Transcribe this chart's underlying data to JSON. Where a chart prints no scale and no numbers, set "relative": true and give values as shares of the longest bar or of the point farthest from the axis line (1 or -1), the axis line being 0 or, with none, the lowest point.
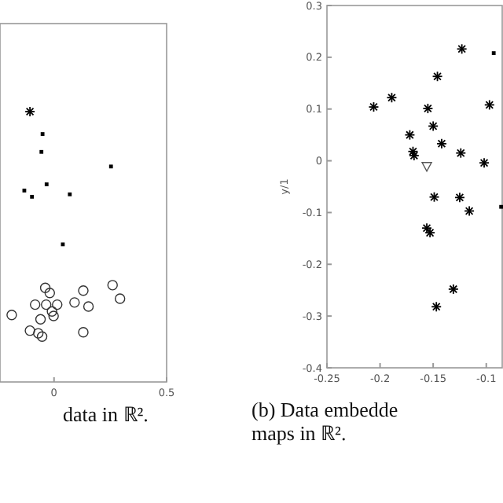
{
  "chart_data": [
    {
      "type": "scatter",
      "title": "data in ℝ².",
      "xlim": [
        -0.24,
        0.5
      ],
      "xticks": [
        0,
        0.5
      ],
      "relative": true,
      "tick_labels": "x",
      "grid": false,
      "series": [
        {
          "color": "#000000",
          "marker": "cross",
          "x": [
            -0.107
          ],
          "values": [
            1.0
          ]
        },
        {
          "color": "#000000",
          "marker": "square",
          "x": [
            -0.051,
            -0.056,
            0.253,
            -0.033,
            -0.132,
            -0.098,
            0.07,
            0.039
          ],
          "values": [
            0.917,
            0.851,
            0.797,
            0.731,
            0.708,
            0.685,
            0.694,
            0.509
          ]
        },
        {
          "color": "#333333",
          "marker": "circle",
          "x": [
            -0.039,
            -0.019,
            0.13,
            0.26,
            0.293,
            -0.084,
            -0.035,
            0.014,
            0.091,
            0.153,
            -0.188,
            -0.06,
            -0.002,
            -0.009,
            -0.107,
            -0.07,
            -0.053,
            0.13
          ],
          "values": [
            0.348,
            0.329,
            0.338,
            0.358,
            0.308,
            0.286,
            0.286,
            0.286,
            0.294,
            0.279,
            0.248,
            0.232,
            0.244,
            0.261,
            0.19,
            0.18,
            0.168,
            0.184
          ]
        }
      ]
    },
    {
      "type": "scatter",
      "title": "(b) Data embedde\nmaps in ℝ².",
      "ylabel": "y/1",
      "xlim": [
        -0.25,
        -0.085
      ],
      "ylim": [
        -0.4,
        0.3
      ],
      "xticks": [
        -0.25,
        -0.2,
        -0.15,
        -0.1
      ],
      "yticks": [
        -0.4,
        -0.3,
        -0.2,
        -0.1,
        0,
        0.1,
        0.2,
        0.3
      ],
      "grid": false,
      "series": [
        {
          "color": "#000000",
          "marker": "cross",
          "x": [
            -0.123,
            -0.146,
            -0.189,
            -0.206,
            -0.155,
            -0.097,
            -0.15,
            -0.142,
            -0.172,
            -0.169,
            -0.168,
            -0.124,
            -0.102,
            -0.149,
            -0.125,
            -0.116,
            -0.156,
            -0.153,
            -0.131,
            -0.147
          ],
          "values": [
            0.216,
            0.163,
            0.122,
            0.104,
            0.101,
            0.108,
            0.067,
            0.033,
            0.05,
            0.018,
            0.01,
            0.015,
            -0.004,
            -0.07,
            -0.071,
            -0.097,
            -0.13,
            -0.139,
            -0.248,
            -0.282
          ]
        },
        {
          "color": "#555555",
          "marker": "triangle",
          "x": [
            -0.156
          ],
          "values": [
            -0.011
          ]
        },
        {
          "color": "#000000",
          "marker": "square",
          "x": [
            -0.093,
            -0.086
          ],
          "values": [
            0.208,
            -0.089
          ]
        }
      ]
    }
  ]
}
